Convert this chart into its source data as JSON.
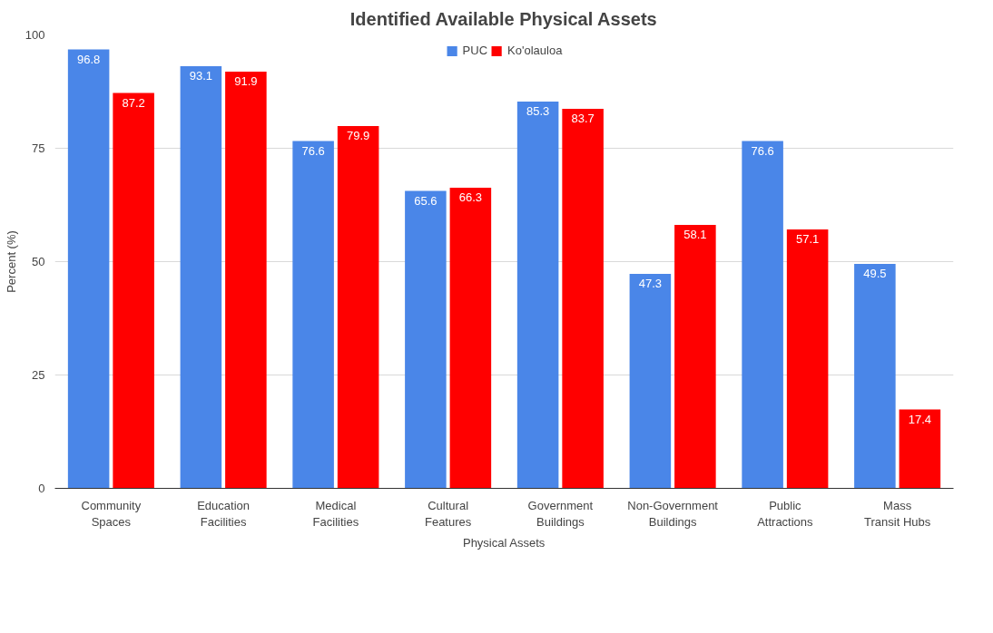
{
  "chart_data": {
    "type": "bar",
    "title": "Identified Available Physical Assets",
    "xlabel": "Physical Assets",
    "ylabel": "Percent (%)",
    "categories": [
      "Community Spaces",
      "Education Facilities",
      "Medical Facilities",
      "Cultural Features",
      "Government Buildings",
      "Non-Government Buildings",
      "Public Attractions",
      "Mass Transit Hubs"
    ],
    "series": [
      {
        "name": "PUC",
        "color": "#4a86e8",
        "values": [
          96.8,
          93.1,
          76.6,
          65.6,
          85.3,
          47.3,
          76.6,
          49.5
        ]
      },
      {
        "name": "Ko'olauloa",
        "color": "#ff0000",
        "values": [
          87.2,
          91.9,
          79.9,
          66.3,
          83.7,
          58.1,
          57.1,
          17.4
        ]
      }
    ],
    "ylim": [
      0,
      100
    ],
    "yticks": [
      0,
      25,
      50,
      75,
      100
    ],
    "grid": "y",
    "legend": "top",
    "data_labels": true
  }
}
